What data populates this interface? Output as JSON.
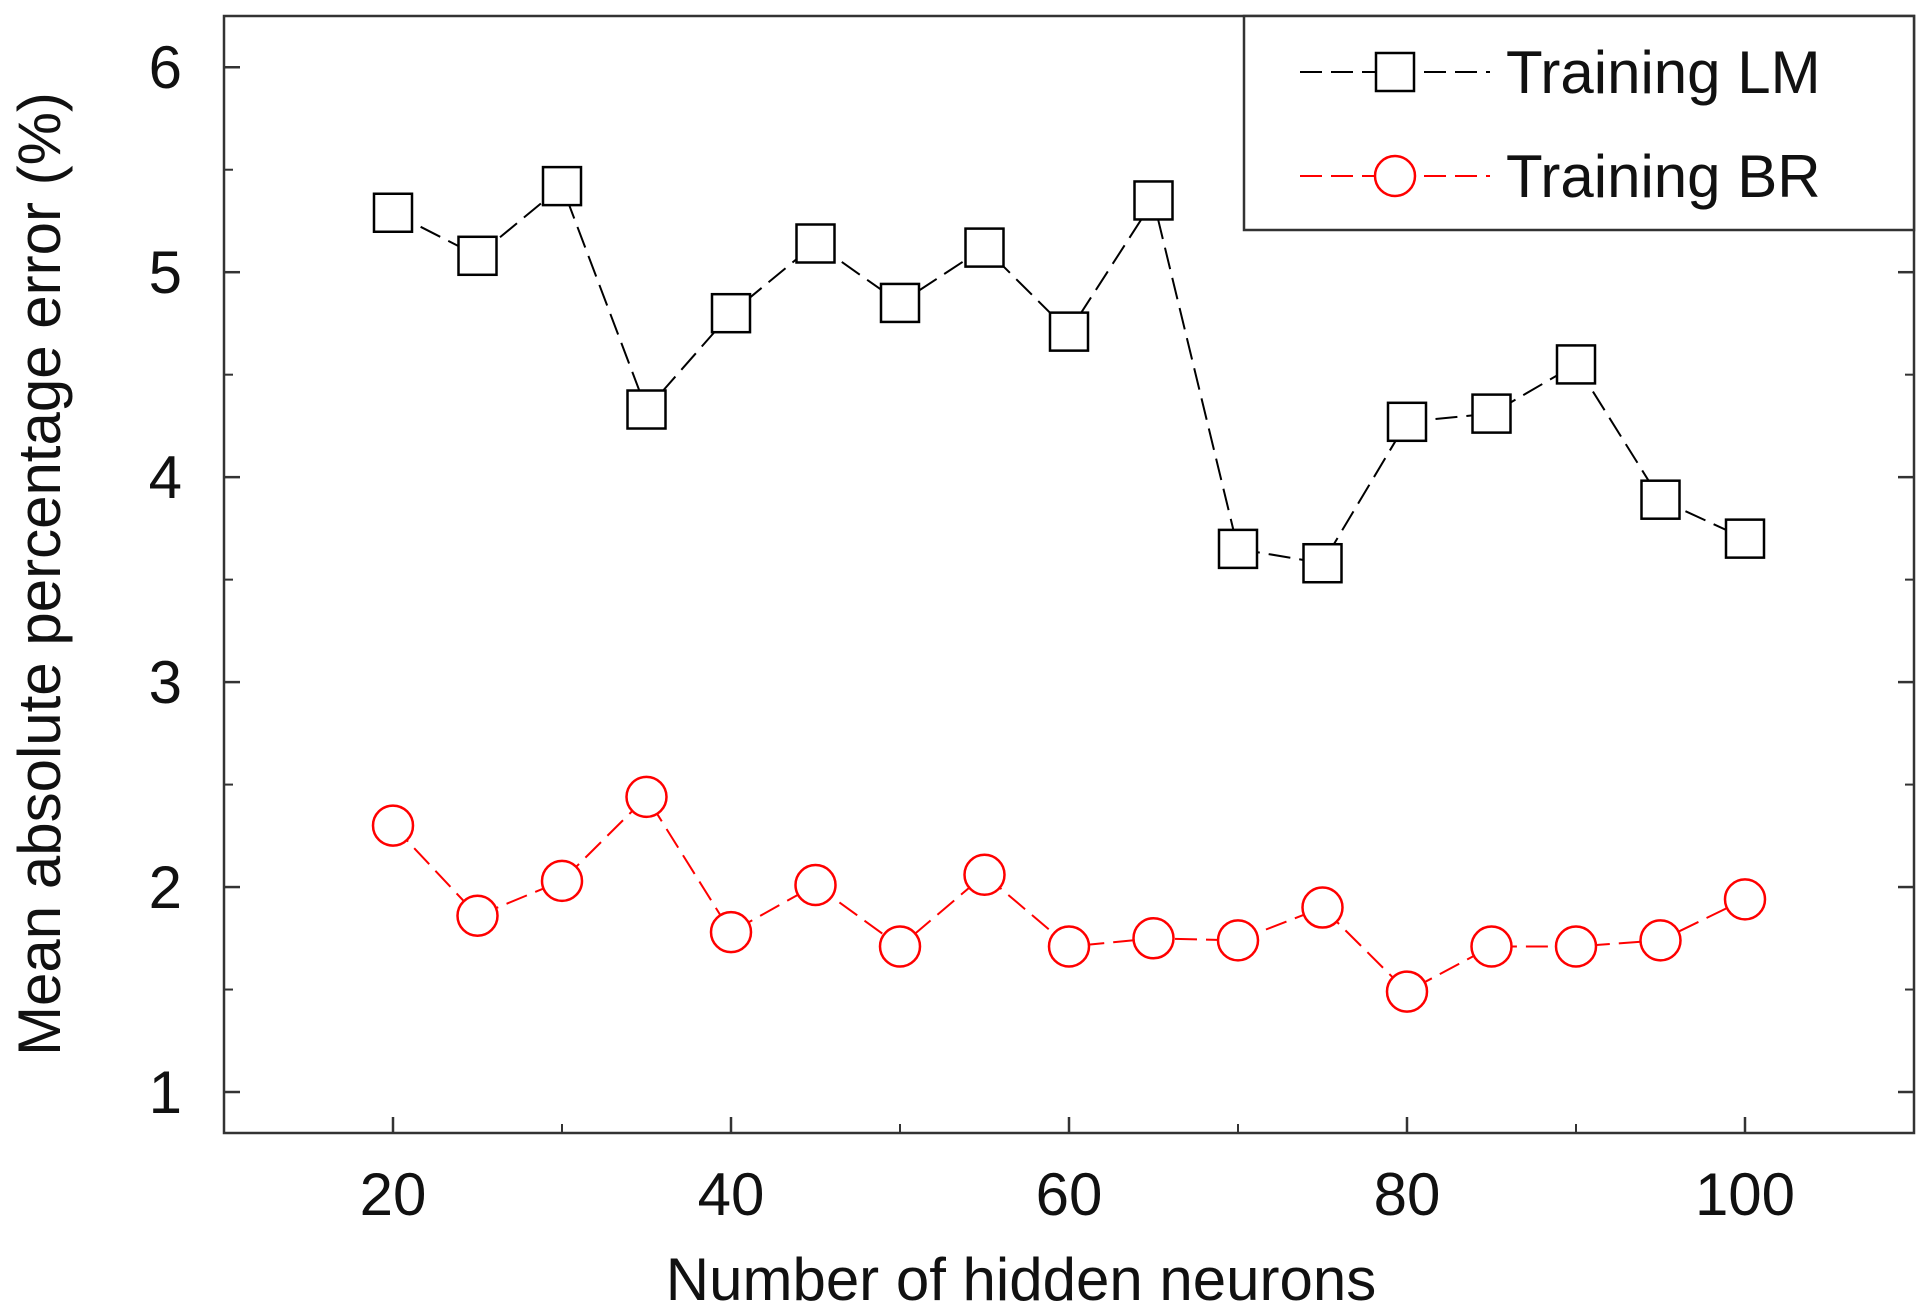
{
  "chart_data": {
    "type": "line",
    "title": "",
    "xlabel": "Number of hidden neurons",
    "ylabel": "Mean absolute percentage error (%)",
    "xlim": [
      10,
      110
    ],
    "ylim": [
      0.8,
      6.25
    ],
    "xticks": [
      20,
      40,
      60,
      80,
      100
    ],
    "yticks": [
      1,
      2,
      3,
      4,
      5,
      6
    ],
    "x_tick_labels": [
      "20",
      "40",
      "60",
      "80",
      "100"
    ],
    "y_tick_labels": [
      "1",
      "2",
      "3",
      "4",
      "5",
      "6"
    ],
    "grid": false,
    "legend_position": "top-right",
    "x": [
      20,
      25,
      30,
      35,
      40,
      45,
      50,
      55,
      60,
      65,
      70,
      75,
      80,
      85,
      90,
      95,
      100
    ],
    "series": [
      {
        "name": "Training LM",
        "color": "#000000",
        "marker": "square",
        "line_style": "dashed",
        "values": [
          5.29,
          5.08,
          5.42,
          4.33,
          4.8,
          5.14,
          4.85,
          5.12,
          4.71,
          5.35,
          3.65,
          3.58,
          4.27,
          4.31,
          4.55,
          3.89,
          3.7
        ]
      },
      {
        "name": "Training BR",
        "color": "#ff0000",
        "marker": "circle",
        "line_style": "dashed",
        "values": [
          2.3,
          1.86,
          2.03,
          2.44,
          1.78,
          2.01,
          1.71,
          2.06,
          1.71,
          1.75,
          1.74,
          1.9,
          1.49,
          1.71,
          1.71,
          1.74,
          1.94
        ]
      }
    ]
  }
}
